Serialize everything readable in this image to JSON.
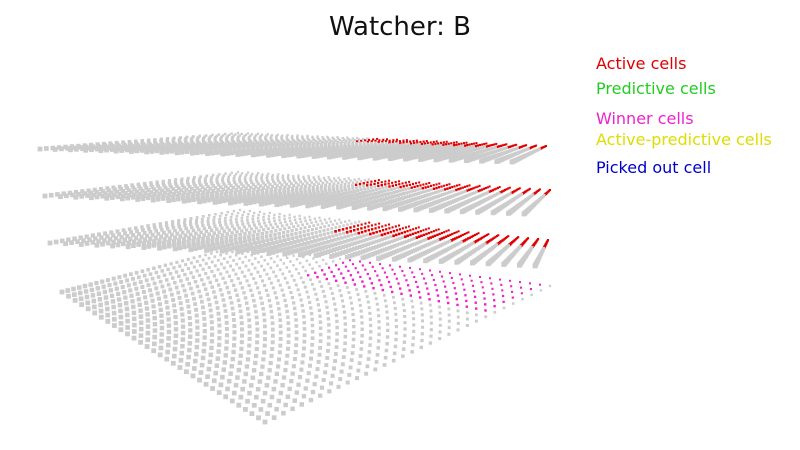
{
  "title": "Watcher: B",
  "legend": [
    {
      "label": "Active cells",
      "color": "#e00000"
    },
    {
      "label": "Predictive cells",
      "color": "#22cc22"
    },
    {
      "label": "Winner cells",
      "color": "#ee22cc"
    },
    {
      "label": "Active-predictive cells",
      "color": "#dddd00"
    },
    {
      "label": "Picked out cell",
      "color": "#0000cc"
    }
  ],
  "colors": {
    "inactive_cell": "#cccccc",
    "active_cell": "#e00000",
    "winner_cell": "#ee22cc",
    "background": "#ffffff"
  },
  "grid": {
    "layers": 4,
    "rows": 32,
    "cols": 32
  }
}
